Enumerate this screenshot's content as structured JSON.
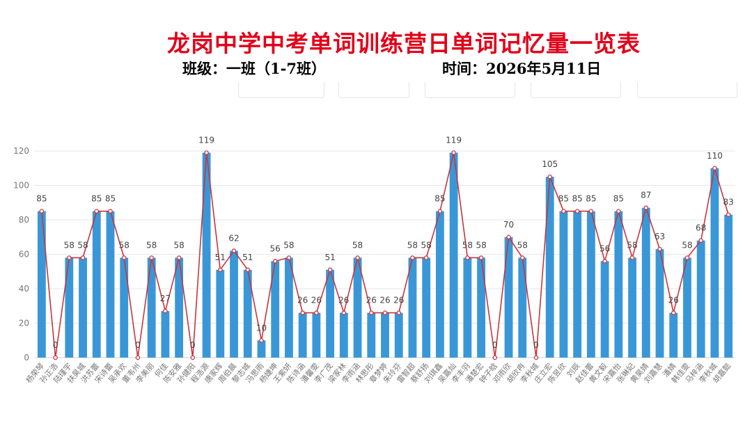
{
  "header": {
    "title": "龙岗中学中考单词训练营日单词记忆量一览表",
    "class_label": "班级：一班（1-7班）",
    "date_label": "时间：2026年5月11日"
  },
  "colors": {
    "title": "#e1001a",
    "bar": "#3a97d7",
    "line": "#c8353b",
    "grid": "#e6e6e6",
    "axis_text": "#777777"
  },
  "chart_data": {
    "type": "bar",
    "overlay": "line",
    "ylim": [
      0,
      120
    ],
    "yticks": [
      0,
      20,
      40,
      60,
      80,
      100,
      120
    ],
    "grid": true,
    "categories": [
      "杨荣琴",
      "孙正浩",
      "陆瑾宇",
      "扶昊城",
      "洪苏蕾",
      "宋诗蕾",
      "吴承欢",
      "董韦州",
      "李美丽",
      "何佳",
      "陈安雅",
      "孙健阳",
      "程浩源",
      "唐家辉",
      "周伯晨",
      "黎志城",
      "冯思雨",
      "杨婕坤",
      "王紫妍",
      "陈诗涵",
      "潘馨雯",
      "李广茂",
      "梁家林",
      "李雨涵",
      "林思彤",
      "章梦婷",
      "朱玲芬",
      "雷智超",
      "蔡舒扬",
      "刘琪鑫",
      "吴嘉灿",
      "李丰羽",
      "潘楚宏",
      "钟子晗",
      "邓雨欣",
      "胡欣冉",
      "李秋城",
      "庄立宏",
      "陈昱欣",
      "刘辰",
      "赵佳蕾",
      "黄文毅",
      "宋嘉怡",
      "张琳妃",
      "黄昊婧",
      "刘嘉慧",
      "潘婧",
      "韩佳雯",
      "马梓涵",
      "李秋城",
      "胡嘉懿"
    ],
    "values": [
      85,
      0,
      58,
      58,
      85,
      85,
      58,
      0,
      58,
      27,
      58,
      0,
      119,
      51,
      62,
      51,
      10,
      56,
      58,
      26,
      26,
      51,
      26,
      58,
      26,
      26,
      26,
      58,
      58,
      85,
      119,
      58,
      58,
      0,
      70,
      58,
      0,
      105,
      85,
      85,
      85,
      56,
      85,
      58,
      87,
      63,
      26,
      58,
      68,
      110,
      83
    ]
  }
}
